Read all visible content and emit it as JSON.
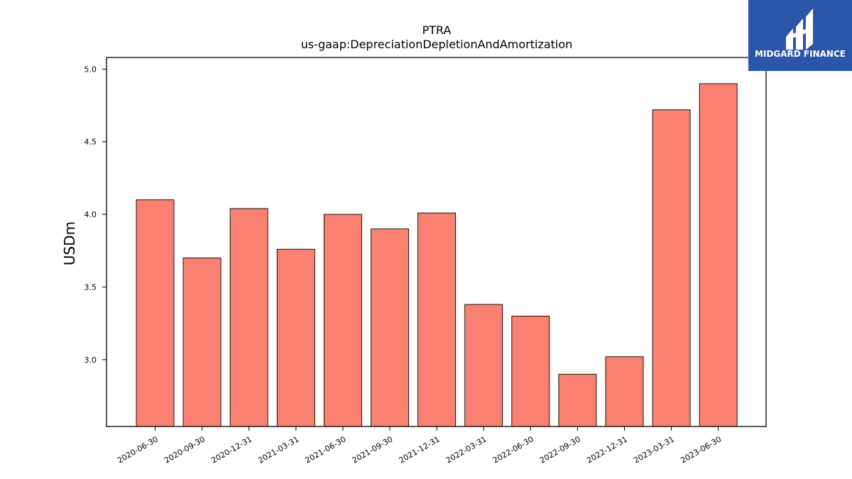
{
  "chart_data": {
    "type": "bar",
    "title": "PTRA",
    "subtitle": "us-gaap:DepreciationDepletionAndAmortization",
    "xlabel": "",
    "ylabel": "USDm",
    "categories": [
      "2020-06-30",
      "2020-09-30",
      "2020-12-31",
      "2021-03-31",
      "2021-06-30",
      "2021-09-30",
      "2021-12-31",
      "2022-03-31",
      "2022-06-30",
      "2022-09-30",
      "2022-12-31",
      "2023-03-31",
      "2023-06-30"
    ],
    "values": [
      4.1,
      3.7,
      4.04,
      3.76,
      4.0,
      3.9,
      4.01,
      3.38,
      3.3,
      2.9,
      3.02,
      4.72,
      4.9
    ],
    "ylim": [
      2.54,
      5.08
    ],
    "yticks": [
      "3.0",
      "3.5",
      "4.0",
      "4.5",
      "5.0"
    ],
    "bar_color": "#fa8072",
    "bar_edge_color": "#000000",
    "grid": false,
    "legend": "none"
  },
  "logo": {
    "text": "MIDGARD FINANCE",
    "background": "#2b55a8"
  }
}
